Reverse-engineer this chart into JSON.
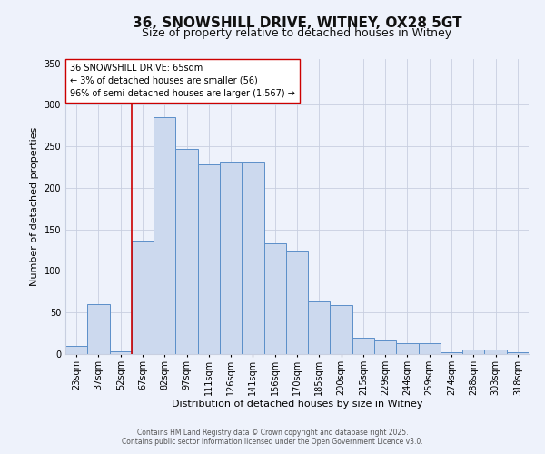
{
  "title": "36, SNOWSHILL DRIVE, WITNEY, OX28 5GT",
  "subtitle": "Size of property relative to detached houses in Witney",
  "xlabel": "Distribution of detached houses by size in Witney",
  "ylabel": "Number of detached properties",
  "categories": [
    "23sqm",
    "37sqm",
    "52sqm",
    "67sqm",
    "82sqm",
    "97sqm",
    "111sqm",
    "126sqm",
    "141sqm",
    "156sqm",
    "170sqm",
    "185sqm",
    "200sqm",
    "215sqm",
    "229sqm",
    "244sqm",
    "259sqm",
    "274sqm",
    "288sqm",
    "303sqm",
    "318sqm"
  ],
  "values": [
    10,
    60,
    3,
    137,
    285,
    247,
    228,
    232,
    232,
    133,
    125,
    63,
    59,
    20,
    17,
    13,
    13,
    2,
    5,
    6,
    2
  ],
  "bar_color": "#ccd9ee",
  "bar_edge_color": "#5b8fc9",
  "background_color": "#eef2fb",
  "grid_color": "#c8cfe0",
  "red_line_color": "#cc0000",
  "annotation_box_text": "36 SNOWSHILL DRIVE: 65sqm\n← 3% of detached houses are smaller (56)\n96% of semi-detached houses are larger (1,567) →",
  "ylim": [
    0,
    355
  ],
  "yticks": [
    0,
    50,
    100,
    150,
    200,
    250,
    300,
    350
  ],
  "footer_line1": "Contains HM Land Registry data © Crown copyright and database right 2025.",
  "footer_line2": "Contains public sector information licensed under the Open Government Licence v3.0.",
  "title_fontsize": 11,
  "subtitle_fontsize": 9,
  "axis_label_fontsize": 8,
  "tick_fontsize": 7,
  "annot_fontsize": 7,
  "footer_fontsize": 5.5
}
